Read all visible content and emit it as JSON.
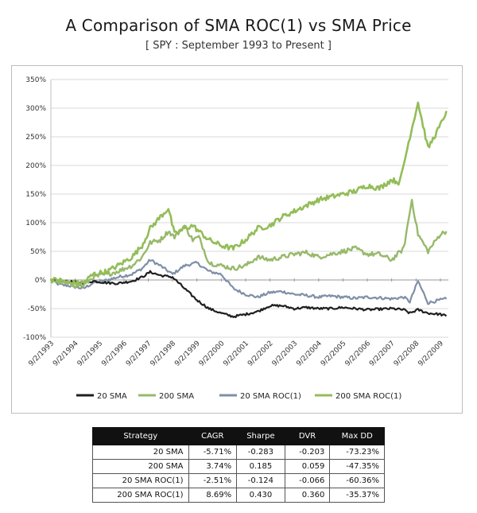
{
  "title": "A Comparison of SMA ROC(1) vs SMA Price",
  "subtitle": "[ SPY : September 1993 to Present ]",
  "colors": {
    "20 SMA": "#1f1f1f",
    "200 SMA": "#98b96a",
    "20 SMA ROC(1)": "#7f8fa7",
    "200 SMA ROC(1)": "#93bd58"
  },
  "chart_data": {
    "type": "line",
    "ylim": [
      -100,
      350
    ],
    "y_ticks": [
      -100,
      -50,
      0,
      50,
      100,
      150,
      200,
      250,
      300,
      350
    ],
    "y_tick_labels": [
      "-100%",
      "-50%",
      "0%",
      "50%",
      "100%",
      "150%",
      "200%",
      "250%",
      "300%",
      "350%"
    ],
    "x_ticks": [
      "9/2/1993",
      "9/2/1994",
      "9/2/1995",
      "9/2/1996",
      "9/2/1997",
      "9/2/1998",
      "9/2/1999",
      "9/2/2000",
      "9/2/2001",
      "9/2/2002",
      "9/2/2003",
      "9/2/2004",
      "9/2/2005",
      "9/2/2006",
      "9/2/2007",
      "9/2/2008",
      "9/2/2009"
    ],
    "grid": true,
    "legend_position": "bottom",
    "series": [
      {
        "name": "20 SMA",
        "x": [
          "1993-09-02",
          "1994-01-01",
          "1994-06-01",
          "1995-01-01",
          "1995-06-01",
          "1996-01-01",
          "1996-06-01",
          "1997-01-01",
          "1997-06-01",
          "1997-10-01",
          "1998-03-01",
          "1998-09-01",
          "1999-03-01",
          "1999-09-01",
          "2000-03-01",
          "2000-09-01",
          "2001-03-01",
          "2001-09-01",
          "2002-03-01",
          "2002-09-01",
          "2003-03-01",
          "2003-09-01",
          "2004-03-01",
          "2004-09-01",
          "2005-03-01",
          "2005-09-01",
          "2006-03-01",
          "2006-09-01",
          "2007-03-01",
          "2007-09-01",
          "2008-03-01",
          "2008-06-01",
          "2008-10-01",
          "2009-03-01",
          "2009-09-01",
          "2009-12-01"
        ],
        "values": [
          0,
          -2,
          -3,
          -5,
          -2,
          -5,
          -6,
          -2,
          5,
          14,
          8,
          5,
          -15,
          -35,
          -50,
          -58,
          -64,
          -60,
          -55,
          -45,
          -45,
          -50,
          -48,
          -50,
          -50,
          -48,
          -50,
          -52,
          -51,
          -50,
          -52,
          -58,
          -52,
          -58,
          -60,
          -63
        ]
      },
      {
        "name": "200 SMA",
        "x": [
          "1993-09-02",
          "1994-01-01",
          "1994-06-01",
          "1995-01-01",
          "1995-06-01",
          "1996-01-01",
          "1996-06-01",
          "1997-01-01",
          "1997-06-01",
          "1997-10-01",
          "1998-03-01",
          "1998-07-01",
          "1998-10-01",
          "1999-03-01",
          "1999-07-01",
          "1999-10-01",
          "2000-03-01",
          "2000-09-01",
          "2001-03-01",
          "2001-09-01",
          "2002-03-01",
          "2002-09-01",
          "2003-03-01",
          "2003-09-01",
          "2004-03-01",
          "2004-09-01",
          "2005-03-01",
          "2005-09-01",
          "2006-03-01",
          "2006-09-01",
          "2007-03-01",
          "2007-09-01",
          "2008-03-01",
          "2008-07-01",
          "2008-10-01",
          "2009-03-01",
          "2009-09-01",
          "2009-12-01"
        ],
        "values": [
          0,
          -3,
          -8,
          -10,
          5,
          10,
          15,
          25,
          40,
          65,
          70,
          85,
          75,
          95,
          70,
          75,
          30,
          25,
          20,
          25,
          40,
          35,
          40,
          45,
          48,
          40,
          45,
          50,
          55,
          45,
          45,
          35,
          55,
          140,
          80,
          50,
          80,
          85
        ]
      },
      {
        "name": "20 SMA ROC(1)",
        "x": [
          "1993-09-02",
          "1994-01-01",
          "1994-06-01",
          "1995-01-01",
          "1995-06-01",
          "1996-01-01",
          "1996-06-01",
          "1997-01-01",
          "1997-06-01",
          "1997-10-01",
          "1998-03-01",
          "1998-09-01",
          "1999-03-01",
          "1999-09-01",
          "2000-03-01",
          "2000-09-01",
          "2001-03-01",
          "2001-09-01",
          "2002-03-01",
          "2002-09-01",
          "2003-03-01",
          "2003-09-01",
          "2004-03-01",
          "2004-09-01",
          "2005-03-01",
          "2005-09-01",
          "2006-03-01",
          "2006-09-01",
          "2007-03-01",
          "2007-09-01",
          "2008-03-01",
          "2008-06-01",
          "2008-10-01",
          "2009-03-01",
          "2009-09-01",
          "2009-12-01"
        ],
        "values": [
          0,
          -8,
          -10,
          -15,
          -5,
          0,
          5,
          10,
          20,
          35,
          25,
          10,
          25,
          30,
          15,
          10,
          -15,
          -25,
          -30,
          -22,
          -20,
          -25,
          -27,
          -30,
          -28,
          -30,
          -32,
          -30,
          -31,
          -33,
          -30,
          -38,
          -2,
          -40,
          -35,
          -33
        ]
      },
      {
        "name": "200 SMA ROC(1)",
        "x": [
          "1993-09-02",
          "1994-01-01",
          "1994-06-01",
          "1995-01-01",
          "1995-06-01",
          "1996-01-01",
          "1996-06-01",
          "1997-01-01",
          "1997-06-01",
          "1997-10-01",
          "1998-03-01",
          "1998-07-01",
          "1998-10-01",
          "1999-03-01",
          "1999-07-01",
          "1999-10-01",
          "2000-03-01",
          "2000-09-01",
          "2001-03-01",
          "2001-09-01",
          "2002-03-01",
          "2002-09-01",
          "2003-03-01",
          "2003-09-01",
          "2004-03-01",
          "2004-09-01",
          "2005-03-01",
          "2005-09-01",
          "2006-03-01",
          "2006-09-01",
          "2007-03-01",
          "2007-09-01",
          "2008-01-01",
          "2008-06-01",
          "2008-10-01",
          "2009-03-01",
          "2009-09-01",
          "2009-12-01"
        ],
        "values": [
          0,
          0,
          -5,
          -5,
          10,
          15,
          25,
          40,
          60,
          90,
          110,
          125,
          80,
          90,
          95,
          85,
          70,
          60,
          55,
          70,
          90,
          95,
          110,
          120,
          130,
          140,
          145,
          150,
          155,
          165,
          160,
          175,
          170,
          250,
          310,
          230,
          270,
          295
        ]
      }
    ]
  },
  "legend": [
    "20 SMA",
    "200 SMA",
    "20 SMA ROC(1)",
    "200 SMA ROC(1)"
  ],
  "table": {
    "headers": [
      "Strategy",
      "CAGR",
      "Sharpe",
      "DVR",
      "Max DD"
    ],
    "rows": [
      [
        "20 SMA",
        "-5.71%",
        "-0.283",
        "-0.203",
        "-73.23%"
      ],
      [
        "200 SMA",
        "3.74%",
        "0.185",
        "0.059",
        "-47.35%"
      ],
      [
        "20 SMA ROC(1)",
        "-2.51%",
        "-0.124",
        "-0.066",
        "-60.36%"
      ],
      [
        "200 SMA ROC(1)",
        "8.69%",
        "0.430",
        "0.360",
        "-35.37%"
      ]
    ]
  }
}
